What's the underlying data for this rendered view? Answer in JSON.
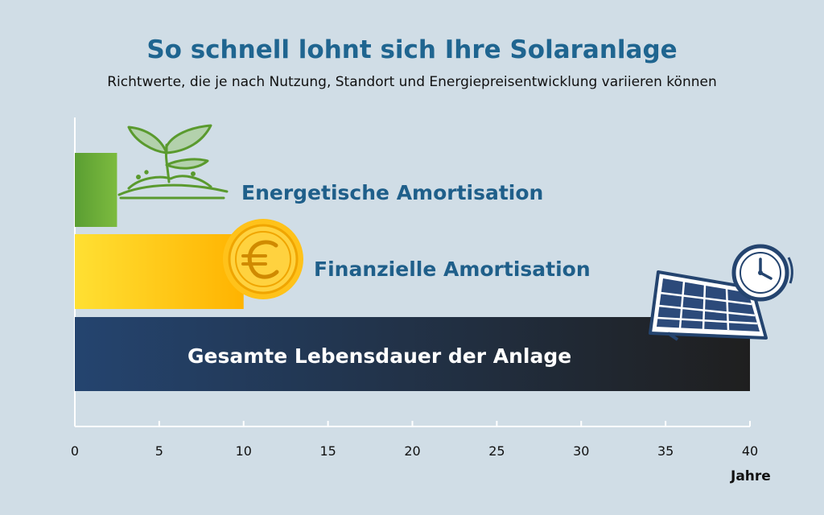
{
  "title": "So schnell lohnt sich Ihre Solaranlage",
  "subtitle": "Richtwerte, die je nach Nutzung, Standort und Energiepreisentwicklung variieren können",
  "chart_data": {
    "type": "bar",
    "orientation": "horizontal",
    "categories": [
      "Energetische Amortisation",
      "Finanzielle Amortisation",
      "Gesamte Lebensdauer der Anlage"
    ],
    "values": [
      2.5,
      10,
      40
    ],
    "xlabel": "Jahre",
    "xlim": [
      0,
      40
    ],
    "xticks": [
      0,
      5,
      10,
      15,
      20,
      25,
      30,
      35,
      40
    ],
    "grid": false,
    "colors": {
      "energetic": [
        "#5a9e32",
        "#7dbb3f"
      ],
      "financial": [
        "#ffe033",
        "#ffb300"
      ],
      "lifetime": [
        "#24446f",
        "#1f1f1f"
      ],
      "label_dark": "#1f5f8a",
      "label_light": "#ffffff"
    },
    "icons": [
      "sprout-icon",
      "euro-coin-icon",
      "solar-panel-clock-icon"
    ]
  }
}
